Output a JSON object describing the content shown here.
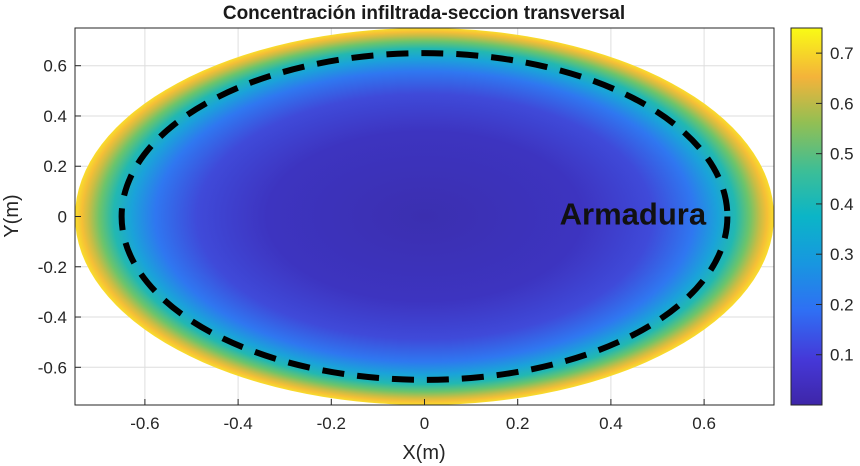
{
  "chart_data": {
    "type": "heatmap",
    "title": "Concentración infiltrada-seccion transversal",
    "xlabel": "X(m)",
    "ylabel": "Y(m)",
    "xlim": [
      -0.75,
      0.75
    ],
    "ylim": [
      -0.75,
      0.75
    ],
    "x_ticks": [
      -0.6,
      -0.4,
      -0.2,
      0,
      0.2,
      0.4,
      0.6
    ],
    "x_tick_labels": [
      "-0.6",
      "-0.4",
      "-0.2",
      "0",
      "0.2",
      "0.4",
      "0.6"
    ],
    "y_ticks": [
      0.6,
      0.4,
      0.2,
      0,
      -0.2,
      -0.4,
      -0.6
    ],
    "y_tick_labels": [
      "0.6",
      "0.4",
      "0.2",
      "0",
      "-0.2",
      "-0.4",
      "-0.6"
    ],
    "grid": true,
    "colormap": "parula",
    "colorbar": {
      "range": [
        0,
        0.75
      ],
      "ticks": [
        0.7,
        0.6,
        0.5,
        0.4,
        0.3,
        0.2,
        0.1
      ],
      "tick_labels": [
        "0.7",
        "0.6",
        "0.5",
        "0.4",
        "0.3",
        "0.2",
        "0.1"
      ]
    },
    "section": {
      "shape": "ellipse",
      "semi_axis_x": 0.75,
      "semi_axis_y": 0.75,
      "value_center": 0.0,
      "value_boundary": 0.75
    },
    "reinforcement": {
      "shape": "ellipse",
      "style": "dashed",
      "color": "#000000",
      "semi_axis_x": 0.65,
      "semi_axis_y": 0.65
    },
    "annotation": {
      "text": "Armadura",
      "x": 0.29,
      "y": 0.0
    }
  }
}
